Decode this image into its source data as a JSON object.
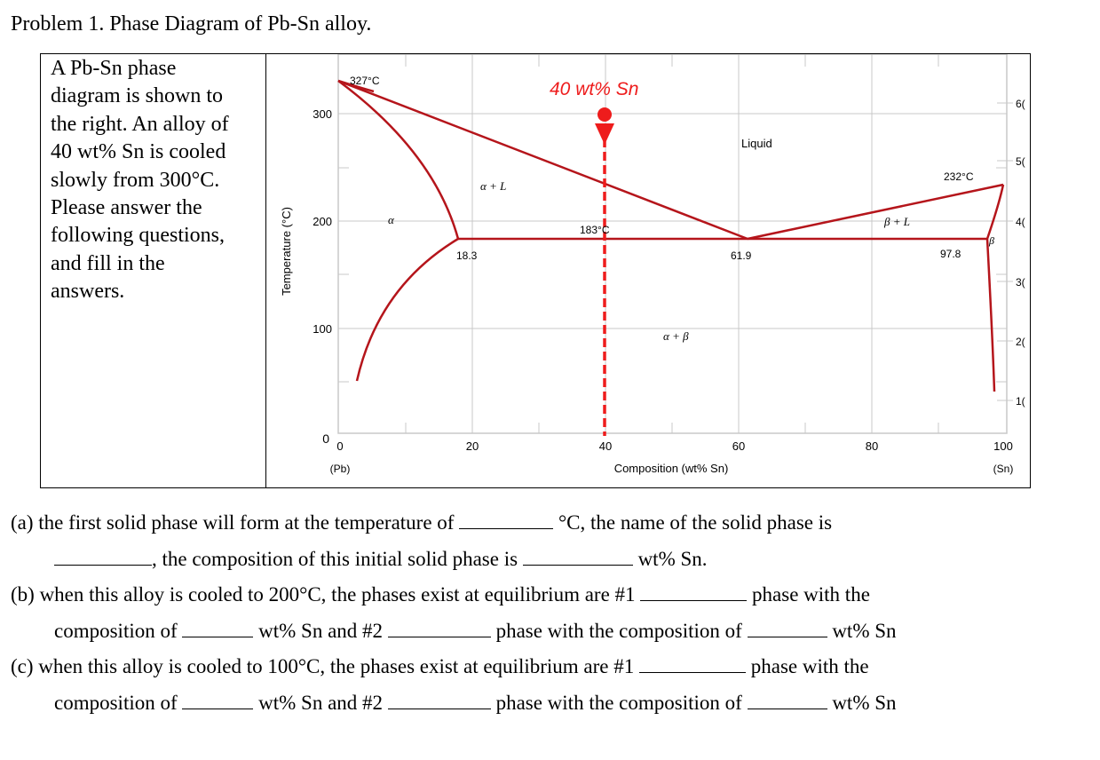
{
  "title": "Problem 1. Phase Diagram of Pb-Sn alloy.",
  "intro": {
    "line1": "A Pb-Sn phase",
    "line2": "diagram is shown to",
    "line3": "the right. An alloy of",
    "line4": "40 wt% Sn is cooled",
    "line5": "slowly from 300°C.",
    "line6": "Please answer the",
    "line7": "following questions,",
    "line8": "and fill in the",
    "line9": "answers."
  },
  "diagram": {
    "ylabel": "Temperature (°C)",
    "xlabel": "Composition (wt% Sn)",
    "x_ticks": [
      "0",
      "20",
      "40",
      "60",
      "80",
      "100"
    ],
    "y_ticks": [
      "0",
      "100",
      "200",
      "300"
    ],
    "left_end": "(Pb)",
    "right_end": "(Sn)",
    "right_tick_fragments": [
      "6(",
      "5(",
      "4(",
      "3(",
      "2(",
      "1("
    ],
    "callouts": {
      "pb_melt": "327°C",
      "sn_melt": "232°C",
      "eutectic": "183°C",
      "alpha_max": "18.3",
      "eutectic_comp": "61.9",
      "beta_max": "97.8",
      "alloy": "40 wt% Sn"
    },
    "regions": {
      "liquid": "Liquid",
      "alpha": "α",
      "alpha_l": "α + L",
      "beta_l": "β + L",
      "beta": "β",
      "alpha_beta": "α + β"
    },
    "colors": {
      "phase_line": "#b5151b",
      "alloy_marker": "#ee1c1c",
      "grid": "#c8c8c8"
    }
  },
  "questions": {
    "a1": "(a)  the first solid phase will form at the temperature of",
    "a2": "°C, the name of the solid phase is",
    "a3": ", the composition of this initial solid phase is",
    "a4": "wt% Sn.",
    "b1": "(b)  when this alloy is cooled to 200°C, the phases exist at equilibrium are #1",
    "b2": "phase with the",
    "b3": "composition of",
    "b4": "wt% Sn and #2",
    "b5": "phase with the composition of",
    "b6": "wt% Sn",
    "c1": "(c)  when this alloy is cooled to 100°C, the phases exist at equilibrium are #1",
    "c2": "phase with the",
    "c3": "composition of",
    "c4": "wt% Sn and #2",
    "c5": "phase with the composition of",
    "c6": "wt% Sn"
  }
}
